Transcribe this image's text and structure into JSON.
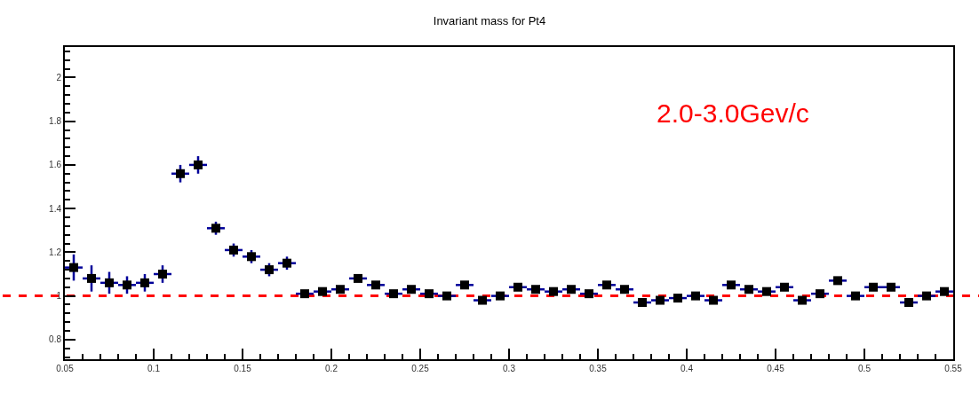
{
  "chart_data": {
    "type": "scatter",
    "title": "Invariant mass for Pt4",
    "annotations": [
      "2.0-3.0Gev/c"
    ],
    "x": [
      0.055,
      0.065,
      0.075,
      0.085,
      0.095,
      0.105,
      0.115,
      0.125,
      0.135,
      0.145,
      0.155,
      0.165,
      0.175,
      0.185,
      0.195,
      0.205,
      0.215,
      0.225,
      0.235,
      0.245,
      0.255,
      0.265,
      0.275,
      0.285,
      0.295,
      0.305,
      0.315,
      0.325,
      0.335,
      0.345,
      0.355,
      0.365,
      0.375,
      0.385,
      0.395,
      0.405,
      0.415,
      0.425,
      0.435,
      0.445,
      0.455,
      0.465,
      0.475,
      0.485,
      0.495,
      0.505,
      0.515,
      0.525,
      0.535,
      0.545
    ],
    "series": [
      {
        "color": "#000000",
        "values": [
          1.13,
          1.08,
          1.06,
          1.05,
          1.06,
          1.1,
          1.56,
          1.6,
          1.31,
          1.21,
          1.18,
          1.12,
          1.15,
          1.01,
          1.02,
          1.03,
          1.08,
          1.05,
          1.01,
          1.03,
          1.01,
          1.0,
          1.05,
          0.98,
          1.0,
          1.04,
          1.03,
          1.02,
          1.03,
          1.01,
          1.05,
          1.03,
          0.97,
          0.98,
          0.99,
          1.0,
          0.98,
          1.05,
          1.03,
          1.02,
          1.04,
          0.98,
          1.01,
          1.07,
          1.0,
          1.04,
          1.04,
          0.97,
          1.0,
          1.02
        ],
        "errors": [
          0.06,
          0.06,
          0.05,
          0.04,
          0.04,
          0.04,
          0.04,
          0.04,
          0.03,
          0.03,
          0.03,
          0.03,
          0.03,
          null,
          null,
          null,
          null,
          null,
          null,
          null,
          null,
          null,
          null,
          null,
          null,
          null,
          null,
          null,
          null,
          null,
          null,
          null,
          null,
          null,
          null,
          null,
          null,
          null,
          null,
          null,
          null,
          null,
          null,
          null,
          null,
          null,
          null,
          null,
          null,
          null
        ],
        "xerrors": [
          0.005,
          0.005,
          0.005,
          0.005,
          0.005,
          0.005,
          0.005,
          0.005,
          0.005,
          0.005,
          0.005,
          0.005,
          0.005,
          0.005,
          0.005,
          0.005,
          0.005,
          0.005,
          0.005,
          0.005,
          0.005,
          0.005,
          0.005,
          0.005,
          0.005,
          0.005,
          0.005,
          0.005,
          0.005,
          0.005,
          0.005,
          0.005,
          0.005,
          0.005,
          0.005,
          0.005,
          0.005,
          0.005,
          0.005,
          0.005,
          0.005,
          0.005,
          0.005,
          0.005,
          0.005,
          0.005,
          0.005,
          0.005,
          0.005,
          0.005
        ]
      }
    ],
    "marker": "square",
    "xlim": [
      0.05,
      0.55
    ],
    "xticks": [
      0.05,
      0.1,
      0.15,
      0.2,
      0.25,
      0.3,
      0.35,
      0.4,
      0.45,
      0.5,
      0.55
    ],
    "ylim": [
      0.71,
      2.14
    ],
    "yticks": [
      0.8,
      1,
      1.2,
      1.4,
      1.6,
      1.8,
      2
    ],
    "ref_lines": [
      {
        "axis": "y",
        "value": 1,
        "color": "#ff0000",
        "line_style": "dashed"
      }
    ],
    "grid": false,
    "legend": false
  }
}
